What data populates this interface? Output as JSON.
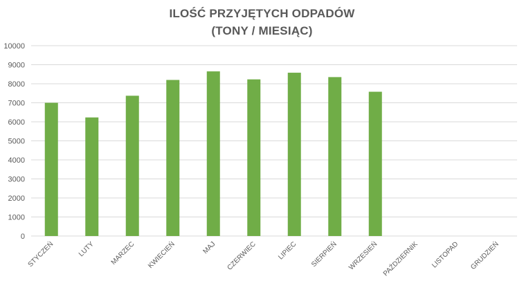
{
  "chart_data": {
    "type": "bar",
    "title_lines": [
      "ILOŚĆ PRZYJĘTYCH ODPADÓW",
      "(TONY / MIESIĄC)"
    ],
    "xlabel": "",
    "ylabel": "",
    "categories": [
      "STYCZEŃ",
      "LUTY",
      "MARZEC",
      "KWIECIEŃ",
      "MAJ",
      "CZERWIEC",
      "LIPIEC",
      "SIERPIEŃ",
      "WRZESIEŃ",
      "PAŹDZIERNIK",
      "LISTOPAD",
      "GRUDZIEŃ"
    ],
    "values": [
      7000,
      6230,
      7370,
      8200,
      8650,
      8230,
      8580,
      8350,
      7580,
      null,
      null,
      null
    ],
    "ylim": [
      0,
      10000
    ],
    "yticks": [
      "0",
      "1000",
      "2000",
      "3000",
      "4000",
      "5000",
      "6000",
      "7000",
      "8000",
      "9000",
      "10000"
    ],
    "grid": true,
    "legend": "none",
    "bar_color": "#70ad47",
    "grid_color": "#d9d9d9",
    "text_color": "#595959"
  }
}
